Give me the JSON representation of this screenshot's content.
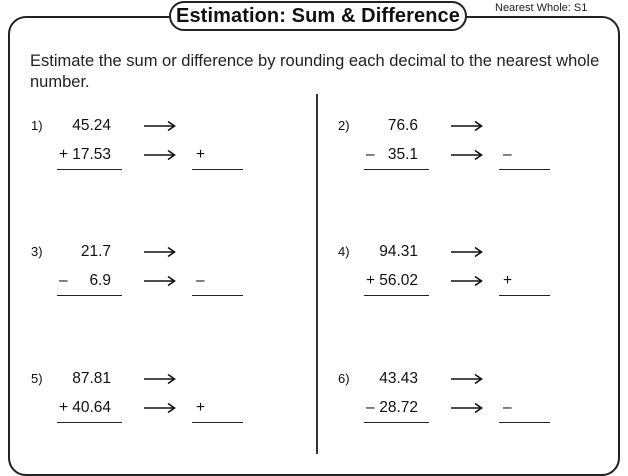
{
  "header": {
    "title": "Estimation: Sum & Difference",
    "set_label": "Nearest Whole: S1"
  },
  "instructions": "Estimate the sum or difference by rounding each decimal to the nearest whole number.",
  "problems": [
    {
      "label": "1)",
      "top": "45.24",
      "op": "+",
      "bottom": "17.53",
      "answer_op": "+"
    },
    {
      "label": "2)",
      "top": "76.6",
      "op": "–",
      "bottom": "35.1",
      "answer_op": "–"
    },
    {
      "label": "3)",
      "top": "21.7",
      "op": "–",
      "bottom": "6.9",
      "answer_op": "–"
    },
    {
      "label": "4)",
      "top": "94.31",
      "op": "+",
      "bottom": "56.02",
      "answer_op": "+"
    },
    {
      "label": "5)",
      "top": "87.81",
      "op": "+",
      "bottom": "40.64",
      "answer_op": "+"
    },
    {
      "label": "6)",
      "top": "43.43",
      "op": "–",
      "bottom": "28.72",
      "answer_op": "–"
    }
  ],
  "icons": {
    "arrow": "long-right-arrow-icon"
  }
}
